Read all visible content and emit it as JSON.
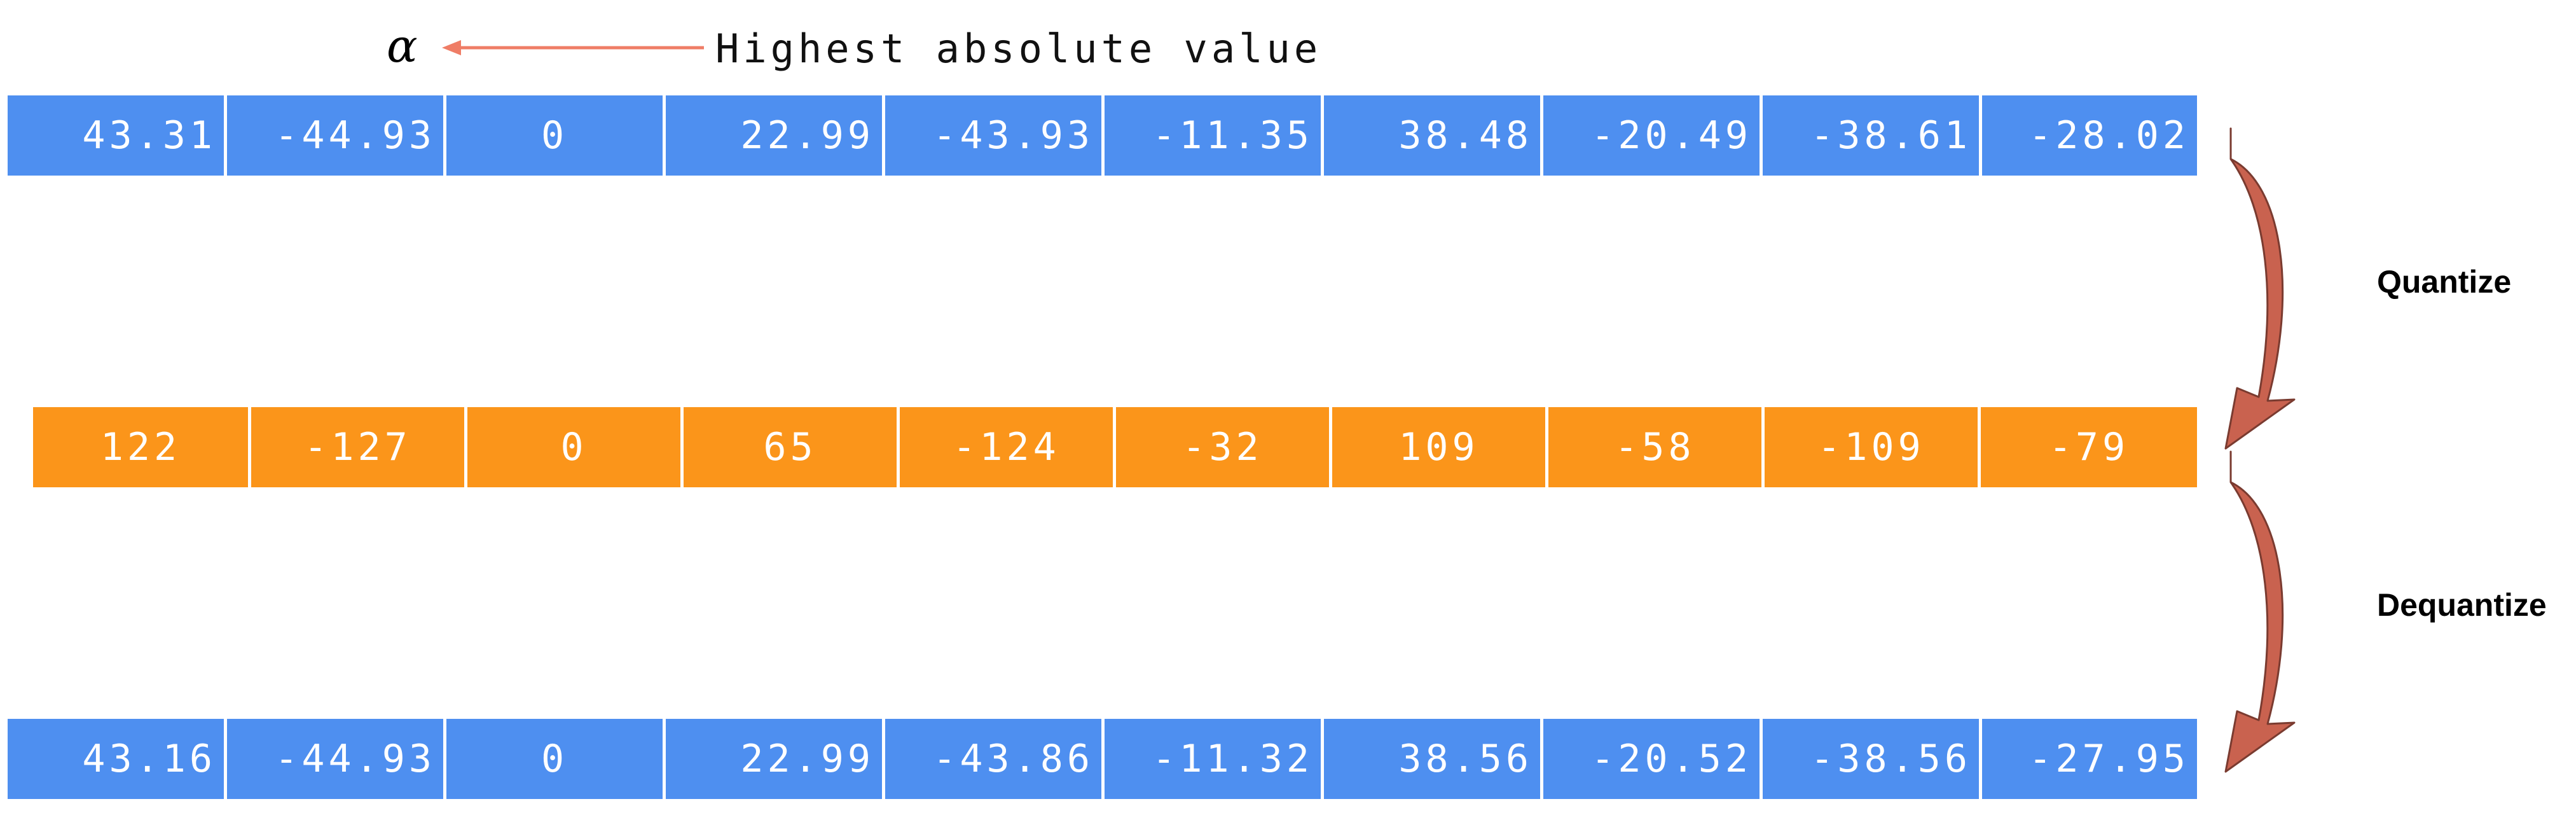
{
  "alpha_symbol": "α",
  "annotation_label": "Highest absolute value",
  "steps": {
    "quantize": "Quantize",
    "dequantize": "Dequantize"
  },
  "colors": {
    "original_row": "#4e8ff0",
    "quantized_row": "#fb951a",
    "arrow": "#c9624f",
    "pointer": "#ef7d66"
  },
  "rows": {
    "original": [
      "43.31",
      "-44.93",
      "0",
      "22.99",
      "-43.93",
      "-11.35",
      "38.48",
      "-20.49",
      "-38.61",
      "-28.02"
    ],
    "quantized": [
      "122",
      "-127",
      "0",
      "65",
      "-124",
      "-32",
      "109",
      "-58",
      "-109",
      "-79"
    ],
    "dequantized": [
      "43.16",
      "-44.93",
      "0",
      "22.99",
      "-43.86",
      "-11.32",
      "38.56",
      "-20.52",
      "-38.56",
      "-27.95"
    ]
  }
}
